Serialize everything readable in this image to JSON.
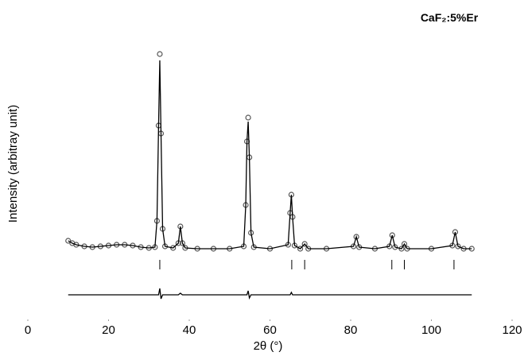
{
  "chart_data": {
    "type": "scatter",
    "annotation": "CaF₂:5%Er",
    "xlabel": "2θ (°)",
    "ylabel": "Intensity (arbitray unit)",
    "xlim": [
      0,
      120
    ],
    "xticks": [
      0,
      20,
      40,
      60,
      80,
      100,
      120
    ],
    "ylim": [
      -82,
      258
    ],
    "x": [
      10,
      11,
      12,
      14,
      16,
      18,
      20,
      22,
      24,
      26,
      28,
      30,
      31.5,
      32.0,
      32.4,
      32.7,
      33.0,
      33.4,
      34,
      36,
      37.3,
      37.8,
      38.3,
      39,
      42,
      46,
      50,
      53.5,
      54.0,
      54.3,
      54.6,
      54.9,
      55.3,
      56,
      60,
      64.5,
      65.0,
      65.3,
      65.6,
      66.1,
      67.5,
      68.6,
      69.5,
      74,
      80.7,
      81.4,
      82.1,
      86,
      89.6,
      90.3,
      91.0,
      92.6,
      93.3,
      94,
      100,
      105.2,
      105.9,
      106.6,
      108,
      110
    ],
    "series": [
      {
        "mode": "markers",
        "color": "#555555",
        "values": [
          15,
          12,
          10,
          8,
          7,
          8,
          9,
          10,
          10,
          9,
          7,
          6,
          7,
          40,
          160,
          250,
          150,
          30,
          8,
          6,
          12,
          33,
          12,
          6,
          5,
          5,
          5,
          8,
          60,
          140,
          170,
          120,
          25,
          7,
          5,
          10,
          50,
          73,
          45,
          9,
          5,
          11,
          5,
          5,
          8,
          20,
          7,
          5,
          8,
          22,
          7,
          5,
          11,
          5,
          5,
          9,
          26,
          8,
          5,
          5
        ]
      },
      {
        "mode": "line",
        "color": "#000000",
        "values": [
          15,
          12,
          10,
          8,
          7,
          8,
          9,
          10,
          10,
          9,
          7,
          6,
          7,
          40,
          160,
          242,
          150,
          30,
          8,
          6,
          12,
          33,
          12,
          6,
          5,
          5,
          5,
          8,
          60,
          140,
          165,
          120,
          25,
          7,
          5,
          10,
          50,
          73,
          45,
          9,
          5,
          11,
          5,
          5,
          8,
          20,
          7,
          5,
          8,
          22,
          7,
          5,
          11,
          5,
          5,
          9,
          26,
          8,
          5,
          5
        ]
      },
      {
        "mode": "line",
        "color": "#000000",
        "values": [
          -53,
          -53,
          -53,
          -53,
          -53,
          -53,
          -53,
          -53,
          -53,
          -53,
          -53,
          -53,
          -53,
          -53,
          -53,
          -45,
          -58,
          -53,
          -53,
          -53,
          -53,
          -51,
          -53,
          -53,
          -53,
          -53,
          -53,
          -53,
          -53,
          -53,
          -48,
          -57,
          -53,
          -53,
          -53,
          -53,
          -53,
          -50,
          -53,
          -53,
          -53,
          -53,
          -53,
          -53,
          -53,
          -53,
          -53,
          -53,
          -53,
          -53,
          -53,
          -53,
          -53,
          -53,
          -53,
          -53,
          -53,
          -53,
          -53,
          -53
        ]
      }
    ],
    "bragg_positions": [
      32.7,
      65.4,
      68.6,
      90.2,
      93.3,
      105.6
    ],
    "bragg_color": "#000000"
  }
}
